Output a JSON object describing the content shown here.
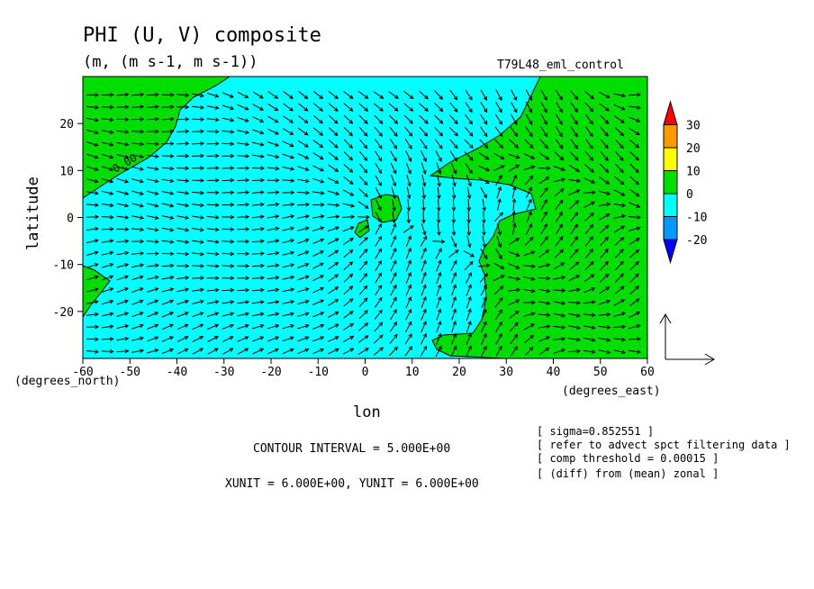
{
  "chart_data": {
    "type": "heatmap",
    "title": "PHI (U, V) composite",
    "subtitle": "(m, (m s-1, m s-1))",
    "run_label": "T79L48_eml_control",
    "xlabel": "lon",
    "ylabel": "latitude",
    "x_unit_label": "(degrees_east)",
    "y_unit_label": "(degrees_north)",
    "xlim": [
      -60,
      60
    ],
    "ylim": [
      -30,
      30
    ],
    "x_ticks": [
      -60,
      -50,
      -40,
      -30,
      -20,
      -10,
      0,
      10,
      20,
      30,
      40,
      50,
      60
    ],
    "y_ticks": [
      -20,
      -10,
      0,
      10,
      20
    ],
    "contour_label": "0.00",
    "colorbar": {
      "levels": [
        30,
        20,
        10,
        0,
        -10,
        -20
      ],
      "colors": [
        "#ff0000",
        "#ff9900",
        "#ffff00",
        "#00dd00",
        "#00ffff",
        "#0099ff",
        "#0000ff"
      ]
    },
    "field_regions": [
      {
        "name": "positive",
        "color": "#00dd00"
      },
      {
        "name": "negative",
        "color": "#00ffff"
      }
    ],
    "vectors": {
      "description_visible": false,
      "convergence_center": [
        1,
        0
      ]
    },
    "notes": {
      "contour_interval": "CONTOUR INTERVAL = 5.000E+00",
      "units": "XUNIT = 6.000E+00, YUNIT = 6.000E+00"
    },
    "info_lines": [
      "[ sigma=0.852551 ]",
      "[ refer to advect spct filtering data ]",
      "[ comp threshold = 0.00015 ]",
      "[ (diff) from (mean) zonal ]"
    ]
  }
}
